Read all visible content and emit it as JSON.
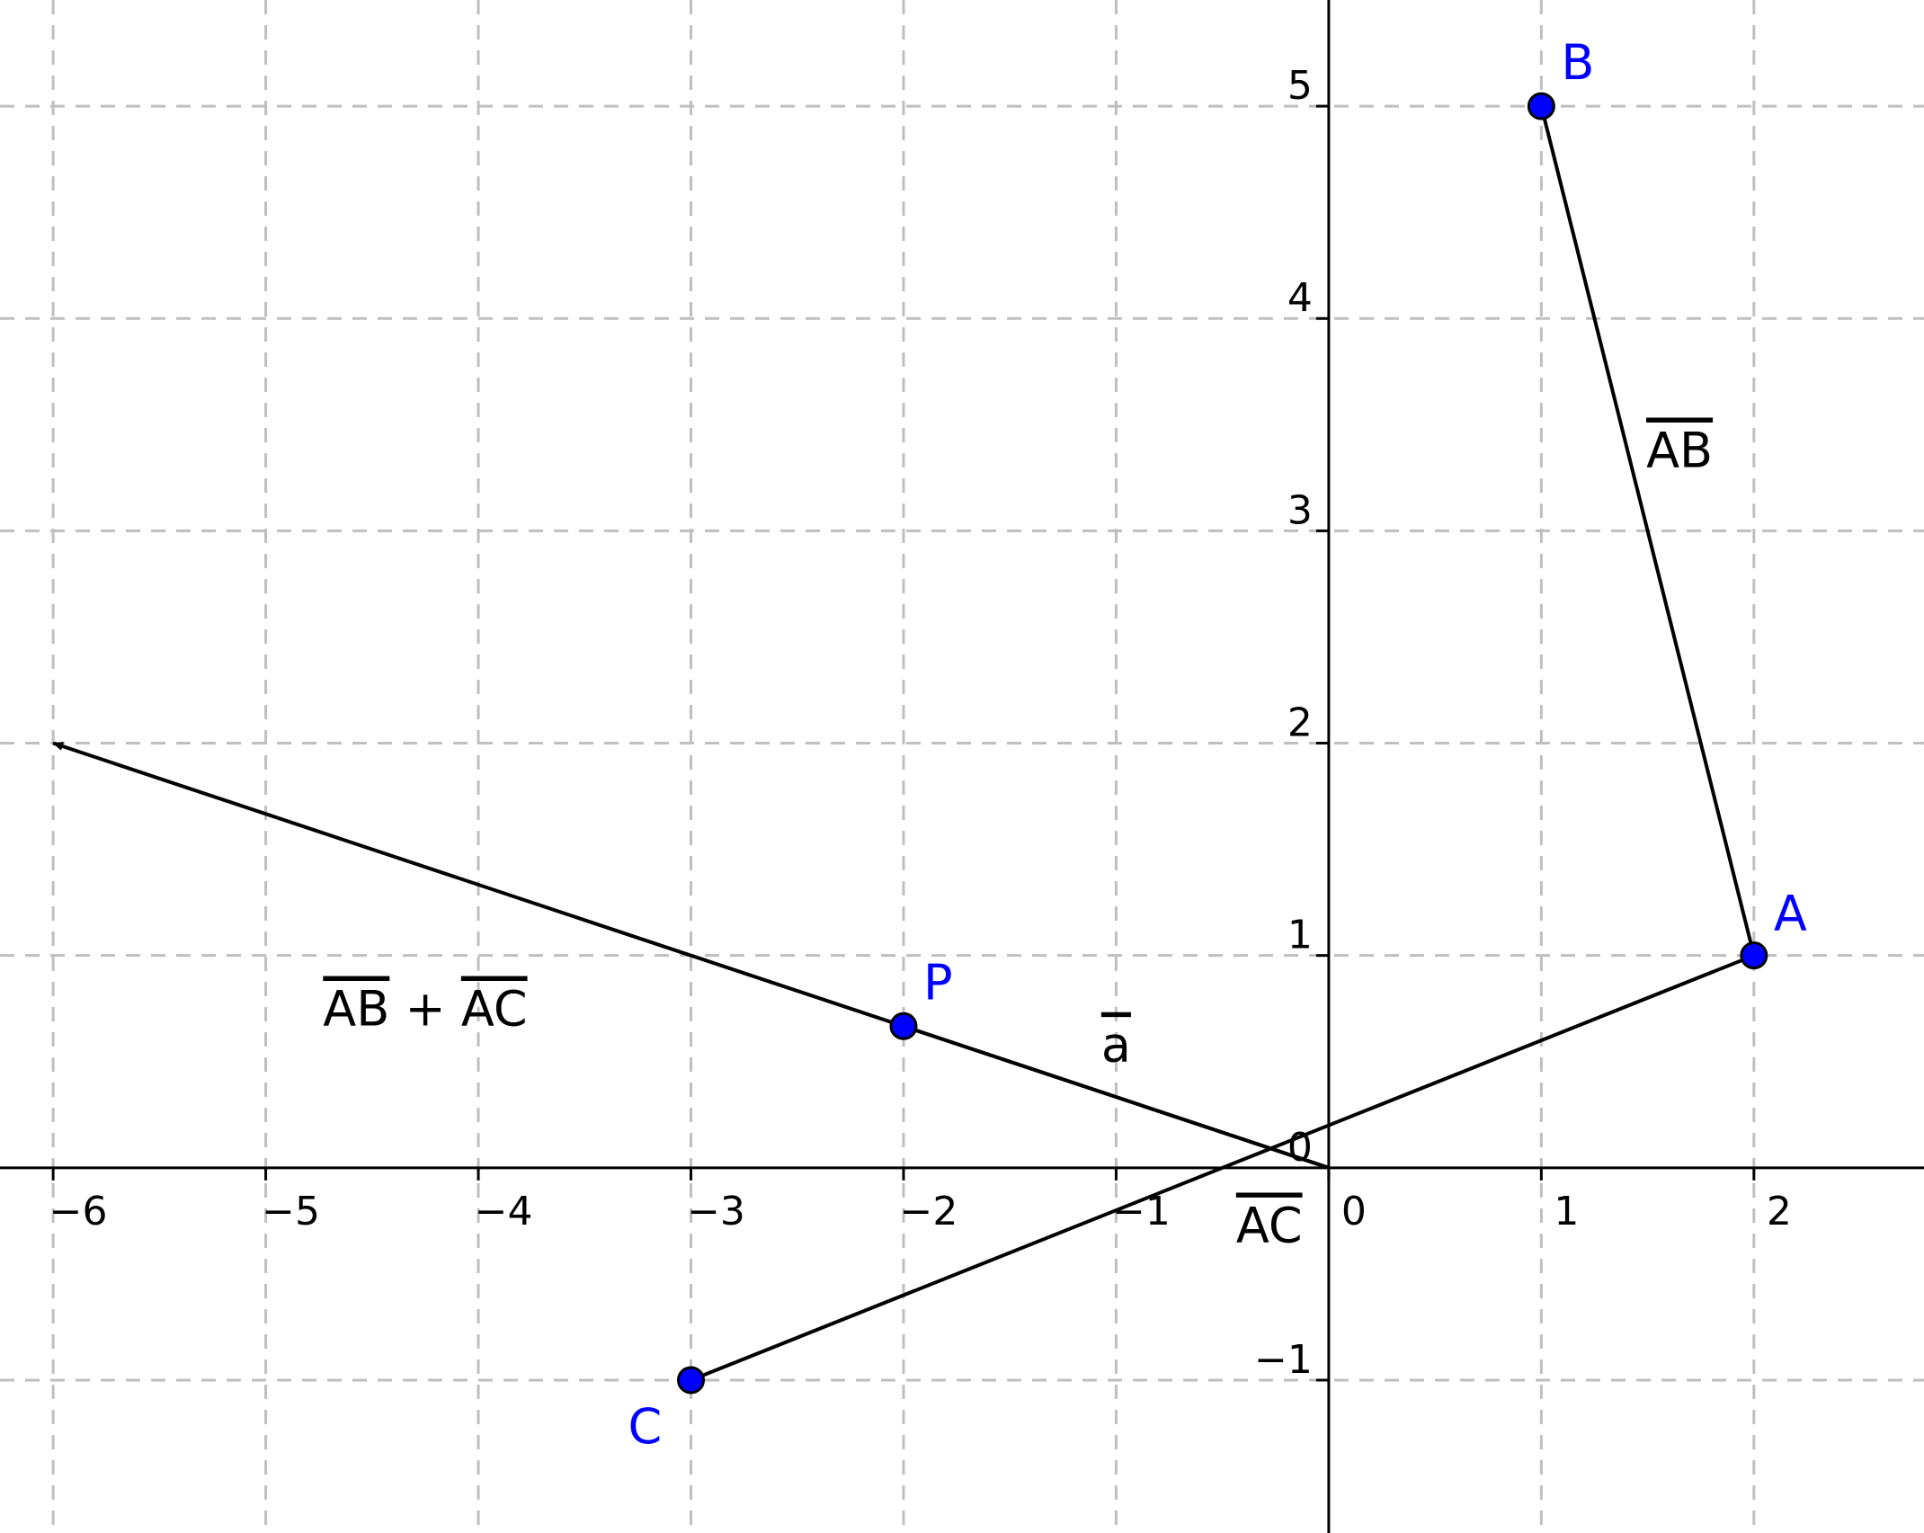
{
  "colors": {
    "grid": "#bfbfbf",
    "axis": "#000000",
    "vector": "#000000",
    "point_fill": "#0000ff",
    "point_stroke": "#000000",
    "point_label": "#0000ff",
    "background": "#ffffff"
  },
  "grid": {
    "visible": true,
    "style": "dashed"
  },
  "axes": {
    "x_range": [
      -6.25,
      2.8
    ],
    "y_range": [
      -1.72,
      5.5
    ],
    "x_ticks": [
      {
        "value": -6,
        "label": "−6"
      },
      {
        "value": -5,
        "label": "−5"
      },
      {
        "value": -4,
        "label": "−4"
      },
      {
        "value": -3,
        "label": "−3"
      },
      {
        "value": -2,
        "label": "−2"
      },
      {
        "value": -1,
        "label": "−1"
      },
      {
        "value": 0,
        "label": "0"
      },
      {
        "value": 1,
        "label": "1"
      },
      {
        "value": 2,
        "label": "2"
      }
    ],
    "y_ticks": [
      {
        "value": -1,
        "label": "−1"
      },
      {
        "value": 1,
        "label": "1"
      },
      {
        "value": 2,
        "label": "2"
      },
      {
        "value": 3,
        "label": "3"
      },
      {
        "value": 4,
        "label": "4"
      },
      {
        "value": 5,
        "label": "5"
      }
    ],
    "origin_label": "0"
  },
  "points": [
    {
      "id": "A",
      "label": "A",
      "x": 2,
      "y": 1
    },
    {
      "id": "B",
      "label": "B",
      "x": 1,
      "y": 5
    },
    {
      "id": "C",
      "label": "C",
      "x": -3,
      "y": -1
    },
    {
      "id": "P",
      "label": "P",
      "x": -2,
      "y": 0.667
    }
  ],
  "vectors": [
    {
      "id": "AB",
      "from": [
        2,
        1
      ],
      "to": [
        1,
        5
      ],
      "label": "AB",
      "overline": "AB",
      "suffix": ""
    },
    {
      "id": "AC",
      "from": [
        2,
        1
      ],
      "to": [
        -3,
        -1
      ],
      "label": "AC",
      "overline": "AC",
      "suffix": ""
    },
    {
      "id": "a",
      "from": [
        0,
        0
      ],
      "to": [
        -2,
        0.667
      ],
      "label": "a",
      "overline": "a",
      "suffix": ""
    },
    {
      "id": "AB_plus_AC",
      "from": [
        0,
        0
      ],
      "to": [
        -6,
        2
      ],
      "label": "AB + AC",
      "overline": "AB",
      "suffix": " + AC"
    }
  ]
}
